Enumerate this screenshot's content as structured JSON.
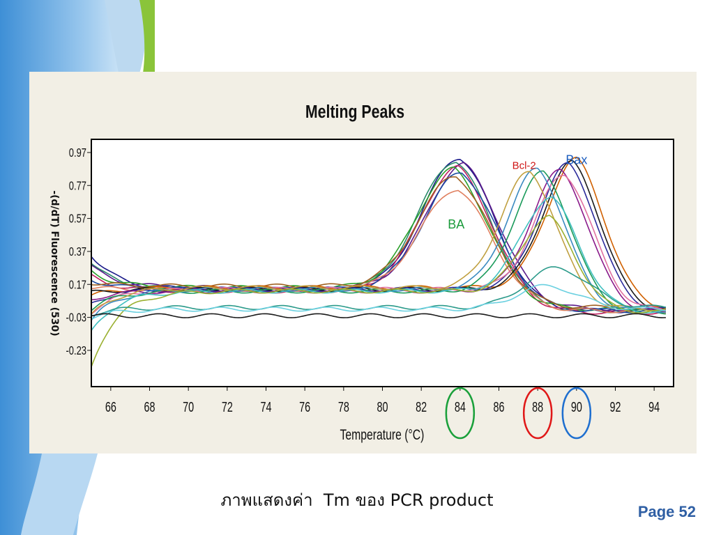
{
  "slide": {
    "caption": "ภาพแสดงค่า  Tm ของ PCR product",
    "page_label": "Page 52"
  },
  "colors": {
    "frame": "#000000",
    "panel_bg": "#f2efe5",
    "bax_label": "#1f5fbf",
    "bcl2_label": "#d01818",
    "ba_label": "#1a9a3a",
    "circle_84": "#1aa03a",
    "circle_88": "#e01818",
    "circle_90": "#1f6fcf",
    "page_label": "#2f5fa4"
  },
  "chart_data": {
    "type": "line",
    "title": "Melting Peaks",
    "xlabel": "Temperature (°C)",
    "ylabel": "-(d/dT) Fluorescence (530)",
    "xlim": [
      65,
      95
    ],
    "ylim": [
      -0.45,
      1.05
    ],
    "xticks": [
      "66",
      "68",
      "70",
      "72",
      "74",
      "76",
      "78",
      "80",
      "82",
      "84",
      "86",
      "88",
      "90",
      "92",
      "94"
    ],
    "yticks": [
      "0.97",
      "0.77",
      "0.57",
      "0.37",
      "0.17",
      "-0.03",
      "-0.23"
    ],
    "annotations": [
      {
        "text": "Bax",
        "x": 90.0,
        "y": 0.9,
        "color": "#1f5fbf"
      },
      {
        "text": "Bcl-2",
        "x": 87.3,
        "y": 0.87,
        "color": "#d01818"
      },
      {
        "text": "BA",
        "x": 83.8,
        "y": 0.51,
        "color": "#1a9a3a"
      }
    ],
    "highlight_circles": [
      {
        "x": 84,
        "color": "#1aa03a"
      },
      {
        "x": 88,
        "color": "#e01818"
      },
      {
        "x": 90,
        "color": "#1f6fcf"
      }
    ],
    "series": [
      {
        "color": "#1a1a8a",
        "base": 0.14,
        "peak_x": 84.0,
        "peak_y": 0.94,
        "width": 1.9,
        "start": 0.35
      },
      {
        "color": "#2a8a6a",
        "base": 0.14,
        "peak_x": 83.8,
        "peak_y": 0.92,
        "width": 1.9,
        "start": 0.3
      },
      {
        "color": "#5a1a8a",
        "base": 0.15,
        "peak_x": 84.2,
        "peak_y": 0.9,
        "width": 1.9,
        "start": 0.28
      },
      {
        "color": "#c02060",
        "base": 0.13,
        "peak_x": 83.9,
        "peak_y": 0.88,
        "width": 1.9,
        "start": 0.22
      },
      {
        "color": "#2aa02a",
        "base": 0.15,
        "peak_x": 83.7,
        "peak_y": 0.87,
        "width": 1.9,
        "start": 0.25
      },
      {
        "color": "#1a4aa0",
        "base": 0.14,
        "peak_x": 84.1,
        "peak_y": 0.85,
        "width": 1.9,
        "start": 0.2
      },
      {
        "color": "#a06020",
        "base": 0.16,
        "peak_x": 83.8,
        "peak_y": 0.83,
        "width": 1.9,
        "start": 0.18
      },
      {
        "color": "#e08060",
        "base": 0.14,
        "peak_x": 83.9,
        "peak_y": 0.75,
        "width": 1.9,
        "start": 0.15
      },
      {
        "color": "#d06000",
        "base": 0.15,
        "peak_x": 90.0,
        "peak_y": 0.93,
        "width": 1.5,
        "start": 0.1
      },
      {
        "color": "#1a1a1a",
        "base": 0.14,
        "peak_x": 89.8,
        "peak_y": 0.91,
        "width": 1.5,
        "start": 0.12
      },
      {
        "color": "#2a2a9a",
        "base": 0.14,
        "peak_x": 89.6,
        "peak_y": 0.9,
        "width": 1.5,
        "start": 0.05
      },
      {
        "color": "#8a1a8a",
        "base": 0.13,
        "peak_x": 89.2,
        "peak_y": 0.86,
        "width": 1.5,
        "start": 0.08
      },
      {
        "color": "#e070a0",
        "base": 0.14,
        "peak_x": 89.4,
        "peak_y": 0.84,
        "width": 1.5,
        "start": 0.0
      },
      {
        "color": "#1a9a5a",
        "base": 0.13,
        "peak_x": 88.3,
        "peak_y": 0.85,
        "width": 1.5,
        "start": 0.02
      },
      {
        "color": "#3a8ac0",
        "base": 0.14,
        "peak_x": 88.0,
        "peak_y": 0.87,
        "width": 1.5,
        "start": -0.05
      },
      {
        "color": "#c0a040",
        "base": 0.15,
        "peak_x": 87.6,
        "peak_y": 0.85,
        "width": 1.5,
        "start": -0.02
      },
      {
        "color": "#40c0c0",
        "base": 0.13,
        "peak_x": 88.7,
        "peak_y": 0.7,
        "width": 1.5,
        "start": -0.12
      },
      {
        "color": "#9ab030",
        "base": 0.13,
        "peak_x": 88.6,
        "peak_y": 0.58,
        "width": 1.4,
        "start": -0.33
      },
      {
        "color": "#2a9a8a",
        "base": 0.03,
        "peak_x": 89.0,
        "peak_y": 0.27,
        "width": 1.6,
        "start": -0.01
      },
      {
        "color": "#6ad0e0",
        "base": 0.02,
        "peak_x": 88.5,
        "peak_y": 0.16,
        "width": 1.6,
        "start": -0.03
      },
      {
        "color": "#1a1a1a",
        "base": -0.02,
        "peak_x": 88.0,
        "peak_y": -0.02,
        "width": 1.5,
        "start": -0.02
      }
    ]
  }
}
